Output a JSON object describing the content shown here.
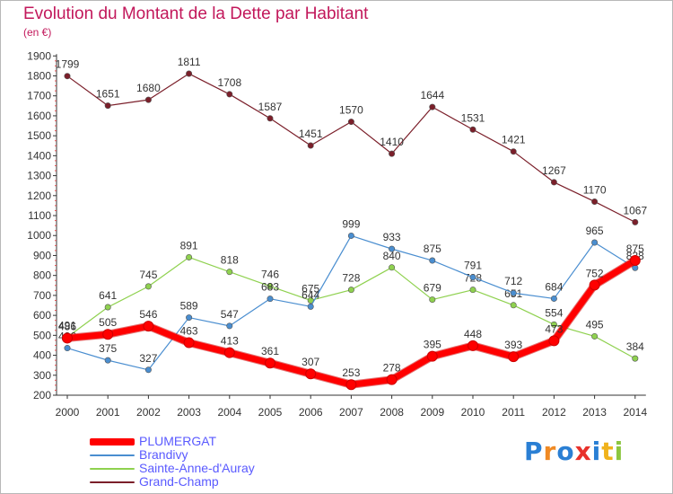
{
  "title": "Evolution du Montant de la Dette par Habitant",
  "subtitle": "(en €)",
  "logo": {
    "text": "Proxiti",
    "colors": [
      "#2a7fd4",
      "#f08a24",
      "#2a7fd4",
      "#e8312b",
      "#2a7fd4",
      "#f0b21c",
      "#8cc63f"
    ]
  },
  "chart_data": {
    "type": "line",
    "x": [
      "2000",
      "2001",
      "2002",
      "2003",
      "2004",
      "2005",
      "2006",
      "2007",
      "2008",
      "2009",
      "2010",
      "2011",
      "2012",
      "2013",
      "2014"
    ],
    "ylim": [
      200,
      1900
    ],
    "yticks": [
      200,
      300,
      400,
      500,
      600,
      700,
      800,
      900,
      1000,
      1100,
      1200,
      1300,
      1400,
      1500,
      1600,
      1700,
      1800,
      1900
    ],
    "grid": false,
    "legend_position": "bottom-left",
    "series": [
      {
        "name": "Grand-Champ",
        "color": "#7b1f2a",
        "values": [
          1799,
          1651,
          1680,
          1811,
          1708,
          1587,
          1451,
          1570,
          1410,
          1644,
          1531,
          1421,
          1267,
          1170,
          1067
        ],
        "labels": [
          "1799",
          "1651",
          "1680",
          "1811",
          "1708",
          "1587",
          "1451",
          "1570",
          "1410",
          "1644",
          "1531",
          "1421",
          "1267",
          "1170",
          "1067"
        ]
      },
      {
        "name": "Sainte-Anne-d'Auray",
        "color": "#8fd14f",
        "values": [
          491,
          641,
          745,
          891,
          818,
          746,
          675,
          728,
          840,
          679,
          728,
          651,
          554,
          495,
          384
        ],
        "labels": [
          "491",
          "641",
          "745",
          "891",
          "818",
          "746",
          "675",
          "728",
          "840",
          "679",
          "728",
          "651",
          "554",
          "495",
          "384"
        ]
      },
      {
        "name": "Brandivy",
        "color": "#4a8ed0",
        "values": [
          436,
          375,
          327,
          589,
          547,
          683,
          644,
          999,
          933,
          875,
          791,
          712,
          684,
          965,
          838
        ],
        "labels": [
          "436",
          "375",
          "327",
          "589",
          "547",
          "683",
          "644",
          "999",
          "933",
          "875",
          "791",
          "712",
          "684",
          "965",
          "838"
        ]
      },
      {
        "name": "PLUMERGAT",
        "color": "#ff0000",
        "values": [
          486,
          505,
          546,
          463,
          413,
          361,
          307,
          253,
          278,
          395,
          448,
          393,
          473,
          752,
          875
        ],
        "labels": [
          "486",
          "505",
          "546",
          "463",
          "413",
          "361",
          "307",
          "253",
          "278",
          "395",
          "448",
          "393",
          "473",
          "752",
          "875"
        ]
      }
    ]
  },
  "legend": [
    {
      "name": "PLUMERGAT",
      "color": "#ff0000"
    },
    {
      "name": "Brandivy",
      "color": "#4a8ed0"
    },
    {
      "name": "Sainte-Anne-d'Auray",
      "color": "#8fd14f"
    },
    {
      "name": "Grand-Champ",
      "color": "#7b1f2a"
    }
  ]
}
